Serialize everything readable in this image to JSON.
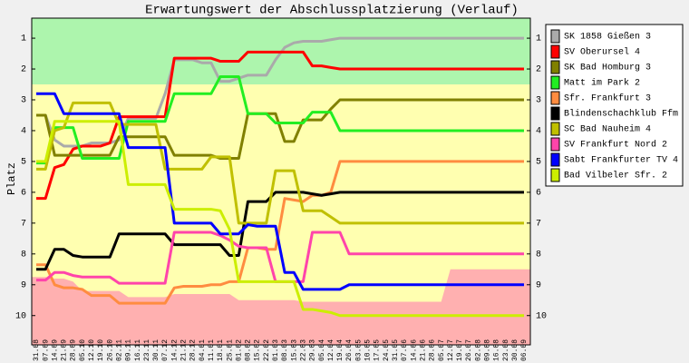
{
  "chart_data": {
    "type": "line",
    "title": "Erwartungswert der Abschlussplatzierung (Verlauf)",
    "y_label": "Platz",
    "y_reversed": true,
    "ylim": [
      0.35,
      10.95
    ],
    "yticks": [
      1,
      2,
      3,
      4,
      5,
      6,
      7,
      8,
      9,
      10
    ],
    "categories": [
      "31.08",
      "07.09",
      "14.09",
      "21.09",
      "28.09",
      "05.10",
      "12.10",
      "19.10",
      "26.10",
      "02.11",
      "09.11",
      "16.11",
      "23.11",
      "30.11",
      "07.12",
      "14.12",
      "21.12",
      "28.12",
      "04.01",
      "11.01",
      "18.01",
      "25.01",
      "01.02",
      "08.02",
      "15.02",
      "22.02",
      "01.03",
      "08.03",
      "15.03",
      "22.03",
      "29.03",
      "05.04",
      "12.04",
      "19.04",
      "26.04",
      "03.05",
      "10.05",
      "17.05",
      "24.05",
      "31.05",
      "07.06",
      "14.06",
      "21.06",
      "28.06",
      "05.07",
      "12.07",
      "19.07",
      "26.07",
      "02.08",
      "09.08",
      "16.08",
      "23.08",
      "30.08",
      "06.09"
    ],
    "zones": {
      "green_to": 2.5,
      "green_color": "#adf5ad",
      "yellow_color": "#ffffb0",
      "red_color": "#ffb0b0",
      "red_from": [
        8.75,
        8.75,
        8.8,
        8.8,
        8.9,
        9.2,
        9.2,
        9.2,
        9.2,
        9.2,
        9.4,
        9.4,
        9.4,
        9.4,
        9.4,
        9.3,
        9.3,
        9.3,
        9.3,
        9.3,
        9.3,
        9.3,
        9.5,
        9.5,
        9.5,
        9.5,
        9.5,
        9.5,
        9.5,
        9.55,
        9.55,
        9.55,
        9.55,
        9.55,
        9.55,
        9.55,
        9.55,
        9.55,
        9.55,
        9.55,
        9.55,
        9.55,
        9.55,
        9.55,
        9.55,
        8.5,
        8.5,
        8.5,
        8.5,
        8.5,
        8.5,
        8.5,
        8.5,
        8.5
      ]
    },
    "series": [
      {
        "name": "SK 1858 Gießen 3",
        "color": "#aaaaaa",
        "values": [
          3.5,
          3.5,
          4.3,
          4.5,
          4.5,
          4.5,
          4.4,
          4.4,
          4.4,
          4.3,
          3.6,
          3.6,
          3.6,
          3.6,
          2.8,
          1.7,
          1.7,
          1.7,
          1.8,
          1.8,
          2.4,
          2.4,
          2.3,
          2.2,
          2.2,
          2.2,
          1.7,
          1.3,
          1.15,
          1.1,
          1.1,
          1.1,
          1.05,
          1.0,
          1.0,
          1.0,
          1.0,
          1.0,
          1.0,
          1.0,
          1.0,
          1.0,
          1.0,
          1.0,
          1.0,
          1.0,
          1.0,
          1.0,
          1.0,
          1.0,
          1.0,
          1.0,
          1.0,
          1.0
        ]
      },
      {
        "name": "SV Oberursel 4",
        "color": "#ff0000",
        "values": [
          6.2,
          6.2,
          5.2,
          5.1,
          4.6,
          4.5,
          4.5,
          4.5,
          4.4,
          3.55,
          3.55,
          3.55,
          3.55,
          3.55,
          3.55,
          1.65,
          1.65,
          1.65,
          1.65,
          1.65,
          1.75,
          1.75,
          1.75,
          1.45,
          1.45,
          1.45,
          1.45,
          1.45,
          1.45,
          1.45,
          1.9,
          1.9,
          1.95,
          2.0,
          2.0,
          2.0,
          2.0,
          2.0,
          2.0,
          2.0,
          2.0,
          2.0,
          2.0,
          2.0,
          2.0,
          2.0,
          2.0,
          2.0,
          2.0,
          2.0,
          2.0,
          2.0,
          2.0,
          2.0
        ]
      },
      {
        "name": "SK Bad Homburg 3",
        "color": "#808000",
        "values": [
          3.5,
          3.5,
          4.8,
          4.8,
          4.8,
          4.8,
          4.8,
          4.8,
          4.8,
          4.2,
          4.2,
          4.2,
          4.2,
          4.2,
          4.2,
          4.8,
          4.8,
          4.8,
          4.8,
          4.8,
          4.9,
          4.9,
          4.9,
          3.45,
          3.45,
          3.45,
          3.45,
          4.35,
          4.35,
          3.65,
          3.65,
          3.65,
          3.3,
          3.0,
          3.0,
          3.0,
          3.0,
          3.0,
          3.0,
          3.0,
          3.0,
          3.0,
          3.0,
          3.0,
          3.0,
          3.0,
          3.0,
          3.0,
          3.0,
          3.0,
          3.0,
          3.0,
          3.0,
          3.0
        ]
      },
      {
        "name": "Matt im Park 2",
        "color": "#22ee22",
        "values": [
          5.05,
          5.05,
          3.9,
          3.9,
          3.9,
          4.9,
          4.9,
          4.9,
          4.9,
          4.9,
          3.7,
          3.7,
          3.7,
          3.7,
          3.7,
          2.8,
          2.8,
          2.8,
          2.8,
          2.8,
          2.25,
          2.25,
          2.25,
          3.45,
          3.45,
          3.45,
          3.75,
          3.75,
          3.75,
          3.75,
          3.4,
          3.4,
          3.4,
          4.0,
          4.0,
          4.0,
          4.0,
          4.0,
          4.0,
          4.0,
          4.0,
          4.0,
          4.0,
          4.0,
          4.0,
          4.0,
          4.0,
          4.0,
          4.0,
          4.0,
          4.0,
          4.0,
          4.0,
          4.0
        ]
      },
      {
        "name": "Sfr. Frankfurt 3",
        "color": "#ff8c40",
        "values": [
          8.35,
          8.35,
          9.0,
          9.1,
          9.1,
          9.15,
          9.35,
          9.35,
          9.35,
          9.6,
          9.6,
          9.6,
          9.6,
          9.6,
          9.6,
          9.1,
          9.05,
          9.05,
          9.05,
          9.0,
          9.0,
          8.9,
          8.9,
          7.8,
          7.8,
          7.85,
          7.85,
          6.2,
          6.25,
          6.3,
          6.1,
          6.1,
          6.0,
          5.0,
          5.0,
          5.0,
          5.0,
          5.0,
          5.0,
          5.0,
          5.0,
          5.0,
          5.0,
          5.0,
          5.0,
          5.0,
          5.0,
          5.0,
          5.0,
          5.0,
          5.0,
          5.0,
          5.0,
          5.0
        ]
      },
      {
        "name": "Blindenschachklub Ffm",
        "color": "#000000",
        "values": [
          8.5,
          8.5,
          7.85,
          7.85,
          8.05,
          8.1,
          8.1,
          8.1,
          8.1,
          7.35,
          7.35,
          7.35,
          7.35,
          7.35,
          7.35,
          7.7,
          7.7,
          7.7,
          7.7,
          7.7,
          7.7,
          8.05,
          8.05,
          6.3,
          6.3,
          6.3,
          6.0,
          6.0,
          6.0,
          6.0,
          6.05,
          6.1,
          6.05,
          6.0,
          6.0,
          6.0,
          6.0,
          6.0,
          6.0,
          6.0,
          6.0,
          6.0,
          6.0,
          6.0,
          6.0,
          6.0,
          6.0,
          6.0,
          6.0,
          6.0,
          6.0,
          6.0,
          6.0,
          6.0
        ]
      },
      {
        "name": "SC Bad Nauheim 4",
        "color": "#c0c000",
        "values": [
          5.25,
          5.25,
          4.0,
          3.9,
          3.1,
          3.1,
          3.1,
          3.1,
          3.1,
          3.8,
          3.8,
          3.8,
          3.8,
          3.8,
          5.25,
          5.25,
          5.25,
          5.25,
          5.25,
          4.85,
          4.85,
          4.85,
          7.0,
          7.0,
          7.0,
          7.0,
          5.3,
          5.3,
          5.3,
          6.6,
          6.6,
          6.6,
          6.8,
          7.0,
          7.0,
          7.0,
          7.0,
          7.0,
          7.0,
          7.0,
          7.0,
          7.0,
          7.0,
          7.0,
          7.0,
          7.0,
          7.0,
          7.0,
          7.0,
          7.0,
          7.0,
          7.0,
          7.0,
          7.0
        ]
      },
      {
        "name": "SV Frankfurt Nord 2",
        "color": "#ff44aa",
        "values": [
          8.85,
          8.85,
          8.6,
          8.6,
          8.7,
          8.75,
          8.75,
          8.75,
          8.75,
          8.95,
          8.95,
          8.95,
          8.95,
          8.95,
          8.95,
          7.3,
          7.3,
          7.3,
          7.3,
          7.3,
          7.4,
          7.55,
          7.75,
          7.8,
          7.8,
          7.8,
          8.9,
          8.9,
          8.9,
          8.9,
          7.3,
          7.3,
          7.3,
          7.3,
          8.0,
          8.0,
          8.0,
          8.0,
          8.0,
          8.0,
          8.0,
          8.0,
          8.0,
          8.0,
          8.0,
          8.0,
          8.0,
          8.0,
          8.0,
          8.0,
          8.0,
          8.0,
          8.0,
          8.0
        ]
      },
      {
        "name": "Sabt Frankfurter TV 4",
        "color": "#0000ff",
        "values": [
          2.8,
          2.8,
          2.8,
          3.45,
          3.45,
          3.45,
          3.45,
          3.45,
          3.45,
          3.45,
          4.55,
          4.55,
          4.55,
          4.55,
          4.55,
          7.0,
          7.0,
          7.0,
          7.0,
          7.0,
          7.35,
          7.35,
          7.35,
          7.05,
          7.1,
          7.1,
          7.1,
          8.6,
          8.6,
          9.15,
          9.15,
          9.15,
          9.15,
          9.15,
          9.0,
          9.0,
          9.0,
          9.0,
          9.0,
          9.0,
          9.0,
          9.0,
          9.0,
          9.0,
          9.0,
          9.0,
          9.0,
          9.0,
          9.0,
          9.0,
          9.0,
          9.0,
          9.0,
          9.0
        ]
      },
      {
        "name": "Bad Vilbeler Sfr. 2",
        "color": "#ccee00",
        "values": [
          5.0,
          5.0,
          3.7,
          3.7,
          3.7,
          3.7,
          3.7,
          3.7,
          3.7,
          3.7,
          5.75,
          5.75,
          5.75,
          5.75,
          5.75,
          6.55,
          6.55,
          6.55,
          6.55,
          6.55,
          6.6,
          7.2,
          8.9,
          8.9,
          8.9,
          8.9,
          8.9,
          8.9,
          8.9,
          9.8,
          9.8,
          9.85,
          9.9,
          10.0,
          10.0,
          10.0,
          10.0,
          10.0,
          10.0,
          10.0,
          10.0,
          10.0,
          10.0,
          10.0,
          10.0,
          10.0,
          10.0,
          10.0,
          10.0,
          10.0,
          10.0,
          10.0,
          10.0,
          10.0
        ]
      }
    ]
  }
}
